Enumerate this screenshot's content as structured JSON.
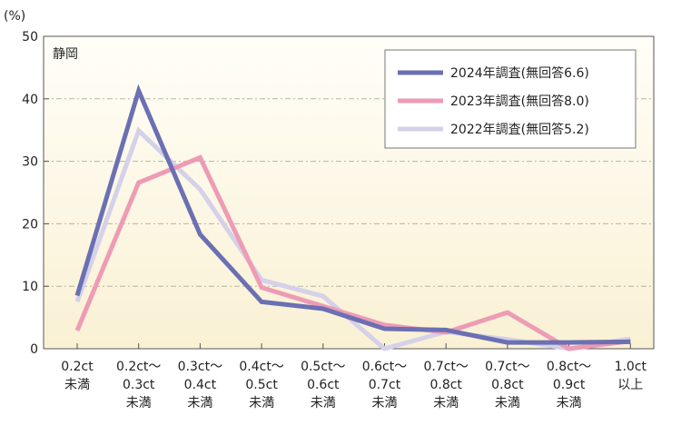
{
  "chart_data": {
    "type": "line",
    "region_label": "静岡",
    "y_unit": "(%)",
    "ylim": [
      0,
      50
    ],
    "yticks": [
      0,
      10,
      20,
      30,
      40,
      50
    ],
    "grid": true,
    "legend_position": "top-right",
    "categories": [
      [
        "0.2ct",
        "未満"
      ],
      [
        "0.2ct〜",
        "0.3ct",
        "未満"
      ],
      [
        "0.3ct〜",
        "0.4ct",
        "未満"
      ],
      [
        "0.4ct〜",
        "0.5ct",
        "未満"
      ],
      [
        "0.5ct〜",
        "0.6ct",
        "未満"
      ],
      [
        "0.6ct〜",
        "0.7ct",
        "未満"
      ],
      [
        "0.7ct〜",
        "0.8ct",
        "未満"
      ],
      [
        "0.7ct〜",
        "0.8ct",
        "未満"
      ],
      [
        "0.8ct〜",
        "0.9ct",
        "未満"
      ],
      [
        "1.0ct",
        "以上"
      ]
    ],
    "series": [
      {
        "name": "2024年調査(無回答6.6)",
        "color": "#6b70b3",
        "values": [
          8.5,
          41.3,
          18.3,
          7.5,
          6.4,
          3.2,
          3.0,
          1.0,
          1.0,
          1.1
        ]
      },
      {
        "name": "2023年調査(無回答8.0)",
        "color": "#ee9bb5",
        "values": [
          2.9,
          26.6,
          30.6,
          9.8,
          6.8,
          3.8,
          2.6,
          5.8,
          0.0,
          1.2
        ]
      },
      {
        "name": "2022年調査(無回答5.2)",
        "color": "#d4d1e9",
        "values": [
          7.5,
          34.9,
          25.5,
          11.0,
          8.4,
          0.0,
          2.7,
          1.5,
          0.0,
          1.6
        ]
      }
    ]
  }
}
